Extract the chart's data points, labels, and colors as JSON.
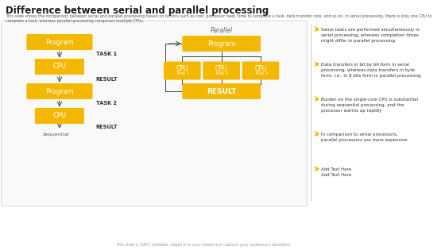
{
  "title": "Difference between serial and parallel processing",
  "subtitle": "This slide shows the comparison between serial and parallel processing based on factors such as cost, processor heat, time to complete a task, data transfer rate, and so on. In serial processing, there is only one CPU to complete a task, whereas parallel processing comprises multiple CPUs.",
  "footer": "This slide is 100% editable. Adapt it to your needs and capture your audience's attention.",
  "bg_color": "#ffffff",
  "box_color": "#f5b800",
  "box_text_color": "#ffffff",
  "serial_side_labels": [
    "TASK 1",
    "RESULT",
    "TASK 2",
    "RESULT"
  ],
  "parallel_label": "Parallel",
  "serial_label": "Sequential",
  "bullet_points": [
    "Same tasks are performed simultaneously in\nserial processing, whereas completion times\nmight differ in parallel processing",
    "Data transfers in bit by bit form in serial\nprocessing, whereas data transfers in byte\nform, i.e., in 8 bits form in parallel processing",
    "Burden on the single-core CPU is substantial\nduring sequential processing, and the\nprocessor warms up rapidly",
    "In comparison to serial processors,\nparallel processors are more expensive",
    "Add Text Here\nAdd Text Here"
  ]
}
